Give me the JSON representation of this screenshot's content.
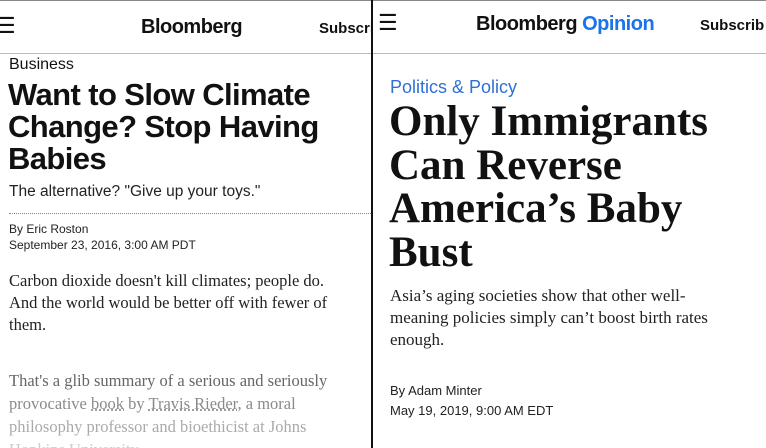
{
  "left": {
    "header": {
      "logo": "Bloomberg",
      "subscribe": "Subscri"
    },
    "section": "Business",
    "headline": [
      "Want to Slow Climate",
      "Change? Stop Having",
      "Babies"
    ],
    "deck": "The alternative? \"Give up your toys.\"",
    "byline_prefix": "By ",
    "author": "Eric Roston",
    "date": "September 23, 2016, 3:00 AM PDT",
    "body_lead": [
      "Carbon dioxide doesn't kill climates; people do.",
      "And the world would be better off with fewer of",
      "them."
    ],
    "body2": {
      "p1": "That's a glib summary of a serious and seriously",
      "l2a": "provocative ",
      "link_book": "book",
      "l2b": " by ",
      "link_author": "Travis Rieder",
      "l2c": ", a moral",
      "l3": "philosophy professor and bioethicist at Johns",
      "l4": "Hopkins University."
    }
  },
  "right": {
    "header": {
      "logo": "Bloomberg",
      "logo_accent": "Opinion",
      "subscribe": "Subscrib"
    },
    "section": "Politics & Policy",
    "headline": [
      "Only Immigrants",
      "Can Reverse",
      "America’s Baby",
      "Bust"
    ],
    "deck": [
      "Asia’s aging societies show that other well-",
      "meaning policies simply can’t boost birth rates",
      "enough."
    ],
    "byline_prefix": "By ",
    "author": "Adam Minter",
    "date": "May 19, 2019, 9:00 AM EDT"
  },
  "colors": {
    "accent_blue": "#1a73e8",
    "section_blue": "#2f6fd6",
    "muted_text": "#8a8a8a"
  }
}
